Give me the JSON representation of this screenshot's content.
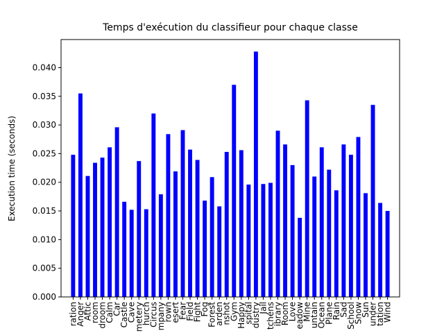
{
  "chart_data": {
    "type": "bar",
    "title": "Temps d'exécution du classifieur pour chaque classe",
    "y_label": "Execution time (seconds)",
    "categories": [
      "ration",
      "Anger",
      "Attic",
      "room",
      "droom",
      "Calm",
      "Car",
      "Castle",
      "Cave",
      "metery",
      "hurch",
      "Circus",
      "mpany",
      "rown",
      "esert",
      "Fear",
      "Field",
      "Fight",
      "Fog",
      "Forest",
      "arden",
      "nshot",
      "Gym",
      "Happy",
      "spital",
      "dustry",
      "Jail",
      "tchens",
      "ibrary",
      "Room",
      "Love",
      "eadow",
      "Mine",
      "untain",
      "Ocean",
      "Plane",
      "Rain",
      "Sad",
      "School",
      "Snow",
      "Sun",
      "under",
      "tation",
      "Wind"
    ],
    "values": [
      0.0248,
      0.0355,
      0.0211,
      0.0234,
      0.0243,
      0.0261,
      0.0296,
      0.0166,
      0.0152,
      0.0237,
      0.0153,
      0.032,
      0.0179,
      0.0284,
      0.0219,
      0.0291,
      0.0257,
      0.0239,
      0.0168,
      0.0209,
      0.0158,
      0.0253,
      0.037,
      0.0256,
      0.0196,
      0.0428,
      0.0197,
      0.0199,
      0.029,
      0.0266,
      0.023,
      0.0138,
      0.0343,
      0.021,
      0.0261,
      0.0222,
      0.0186,
      0.0266,
      0.0248,
      0.0279,
      0.0181,
      0.0335,
      0.0164,
      0.015
    ],
    "color": "#0000ff",
    "ylim": [
      0,
      0.0449
    ],
    "yticks": [
      {
        "value": 0,
        "label": "0.000"
      },
      {
        "value": 0.005,
        "label": "0.005"
      },
      {
        "value": 0.01,
        "label": "0.010"
      },
      {
        "value": 0.015,
        "label": "0.015"
      },
      {
        "value": 0.02,
        "label": "0.020"
      },
      {
        "value": 0.025,
        "label": "0.025"
      },
      {
        "value": 0.03,
        "label": "0.030"
      },
      {
        "value": 0.035,
        "label": "0.035"
      },
      {
        "value": 0.04,
        "label": "0.040"
      }
    ],
    "grid": false
  }
}
